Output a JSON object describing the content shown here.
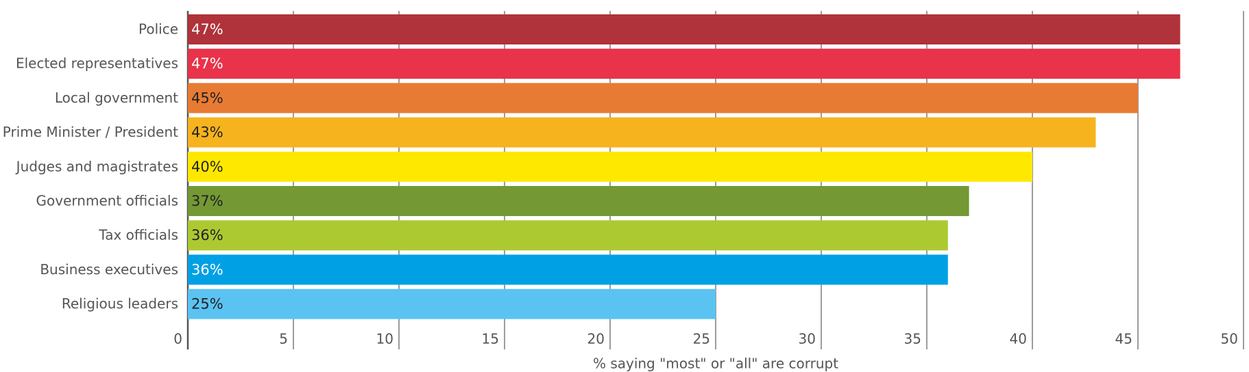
{
  "chart_data": {
    "type": "bar",
    "orientation": "horizontal",
    "categories": [
      "Police",
      "Elected representatives",
      "Local government",
      "Prime Minister / President",
      "Judges and magistrates",
      "Government officials",
      "Tax officials",
      "Business executives",
      "Religious leaders"
    ],
    "values": [
      47,
      47,
      45,
      43,
      40,
      37,
      36,
      36,
      25
    ],
    "value_labels": [
      "47%",
      "47%",
      "45%",
      "43%",
      "40%",
      "37%",
      "36%",
      "36%",
      "25%"
    ],
    "colors": [
      "#b0323a",
      "#e8334a",
      "#e87b33",
      "#f6b31e",
      "#ffe800",
      "#739834",
      "#adc932",
      "#00a1e4",
      "#5bc3f2"
    ],
    "label_colors": [
      "#ffffff",
      "#ffffff",
      "#222222",
      "#222222",
      "#222222",
      "#222222",
      "#222222",
      "#ffffff",
      "#222222"
    ],
    "xlabel": "% saying \"most\" or \"all\" are corrupt",
    "xlim": [
      0,
      50
    ],
    "xticks": [
      0,
      5,
      10,
      15,
      20,
      25,
      30,
      35,
      40,
      45,
      50
    ],
    "grid": true
  }
}
